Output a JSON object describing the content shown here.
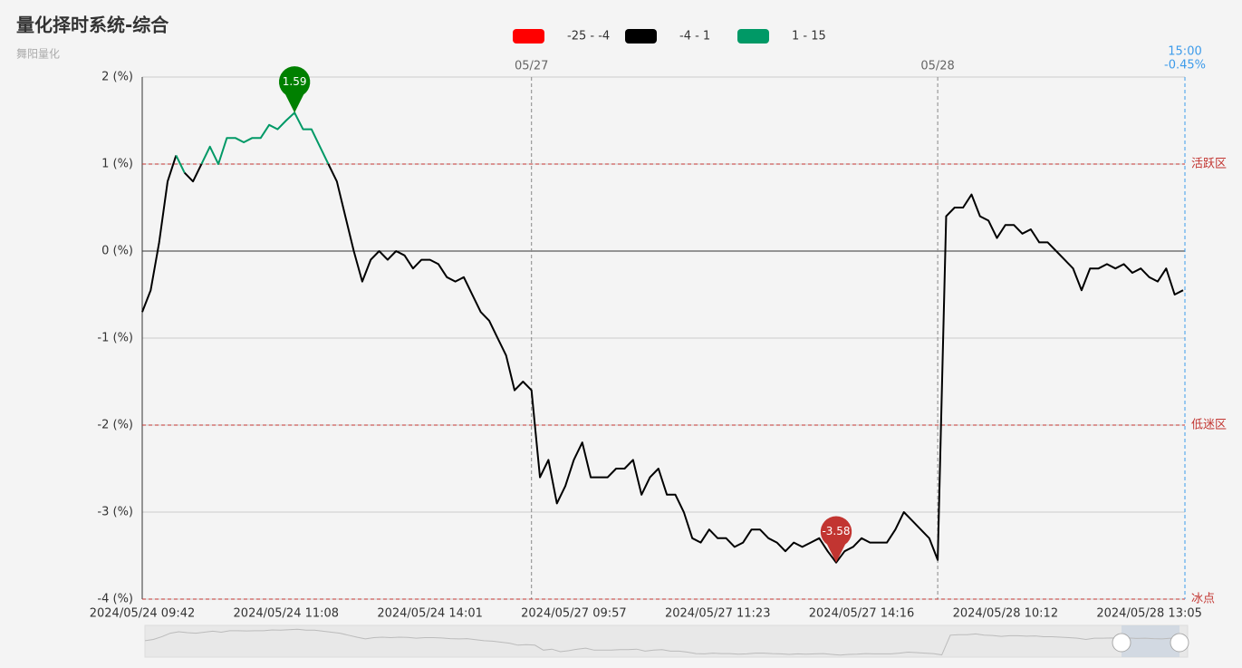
{
  "chart_data": {
    "type": "line",
    "title": "量化择时系统-综合",
    "subtitle": "舞阳量化",
    "categories": [
      "2024/05/24 09:42",
      null,
      null,
      null,
      null,
      null,
      null,
      null,
      null,
      null,
      null,
      null,
      null,
      null,
      null,
      null,
      null,
      "2024/05/24 11:08",
      null,
      null,
      null,
      null,
      null,
      null,
      null,
      null,
      null,
      null,
      null,
      null,
      null,
      null,
      null,
      null,
      "2024/05/24 14:01",
      null,
      null,
      null,
      null,
      null,
      null,
      null,
      null,
      null,
      null,
      null,
      null,
      null,
      null,
      null,
      null,
      "2024/05/27 09:57",
      null,
      null,
      null,
      null,
      null,
      null,
      null,
      null,
      null,
      null,
      null,
      null,
      null,
      null,
      null,
      null,
      "2024/05/27 11:23",
      null,
      null,
      null,
      null,
      null,
      null,
      null,
      null,
      null,
      null,
      null,
      null,
      null,
      null,
      null,
      null,
      "2024/05/27 14:16",
      null,
      null,
      null,
      null,
      null,
      null,
      null,
      null,
      null,
      null,
      null,
      null,
      null,
      null,
      null,
      null,
      "2024/05/28 10:12",
      null,
      null,
      null,
      null,
      null,
      null,
      null,
      null,
      null,
      null,
      null,
      null,
      null,
      null,
      null,
      null,
      "2024/05/28 13:05",
      null,
      null,
      null,
      null
    ],
    "series": [
      {
        "name": "综合",
        "values": [
          -0.7,
          -0.45,
          0.1,
          0.8,
          1.1,
          0.9,
          0.8,
          1.0,
          1.2,
          1.0,
          1.3,
          1.3,
          1.25,
          1.3,
          1.3,
          1.45,
          1.4,
          1.5,
          1.59,
          1.4,
          1.4,
          1.2,
          1.0,
          0.8,
          0.4,
          0.0,
          -0.35,
          -0.1,
          0.0,
          -0.1,
          0.0,
          -0.05,
          -0.2,
          -0.1,
          -0.1,
          -0.15,
          -0.3,
          -0.35,
          -0.3,
          -0.5,
          -0.7,
          -0.8,
          -1.0,
          -1.2,
          -1.6,
          -1.5,
          -1.6,
          -2.6,
          -2.4,
          -2.9,
          -2.7,
          -2.4,
          -2.2,
          -2.6,
          -2.6,
          -2.6,
          -2.5,
          -2.5,
          -2.4,
          -2.8,
          -2.6,
          -2.5,
          -2.8,
          -2.8,
          -3.0,
          -3.3,
          -3.35,
          -3.2,
          -3.3,
          -3.3,
          -3.4,
          -3.35,
          -3.2,
          -3.2,
          -3.3,
          -3.35,
          -3.45,
          -3.35,
          -3.4,
          -3.35,
          -3.3,
          -3.45,
          -3.58,
          -3.45,
          -3.4,
          -3.3,
          -3.35,
          -3.35,
          -3.35,
          -3.2,
          -3.0,
          -3.1,
          -3.2,
          -3.3,
          -3.55,
          0.4,
          0.5,
          0.5,
          0.65,
          0.4,
          0.35,
          0.15,
          0.3,
          0.3,
          0.2,
          0.25,
          0.1,
          0.1,
          0.0,
          -0.1,
          -0.2,
          -0.45,
          -0.2,
          -0.2,
          -0.15,
          -0.2,
          -0.15,
          -0.25,
          -0.2,
          -0.3,
          -0.35,
          -0.2,
          -0.5,
          -0.45
        ]
      }
    ],
    "visual_map": [
      {
        "label": "-25 - -4",
        "min": -25,
        "max": -4,
        "color": "#ff0000"
      },
      {
        "label": "-4 - 1",
        "min": -4,
        "max": 1,
        "color": "#000000"
      },
      {
        "label": "1 - 15",
        "min": 1,
        "max": 15,
        "color": "#009966"
      }
    ],
    "ylim": [
      -4,
      2
    ],
    "yticks": [
      {
        "value": 2,
        "label": "2 (%)"
      },
      {
        "value": 1,
        "label": "1 (%)"
      },
      {
        "value": 0,
        "label": "0 (%)"
      },
      {
        "value": -1,
        "label": "-1 (%)"
      },
      {
        "value": -2,
        "label": "-2 (%)"
      },
      {
        "value": -3,
        "label": "-3 (%)"
      },
      {
        "value": -4,
        "label": "-4 (%)"
      }
    ],
    "grid": true,
    "mark_lines": [
      {
        "value": 1,
        "label": "活跃区"
      },
      {
        "value": -2,
        "label": "低迷区"
      },
      {
        "value": -4,
        "label": "冰点"
      }
    ],
    "mark_line_color": "#c23531",
    "day_lines": [
      {
        "label": "05/27",
        "index": 46
      },
      {
        "label": "05/28",
        "index": 94
      }
    ],
    "end_label": {
      "time": "15:00",
      "value": -0.45,
      "label": "-0.45%"
    },
    "max_pin_color": "#008000",
    "min_pin_color": "#c23531"
  }
}
